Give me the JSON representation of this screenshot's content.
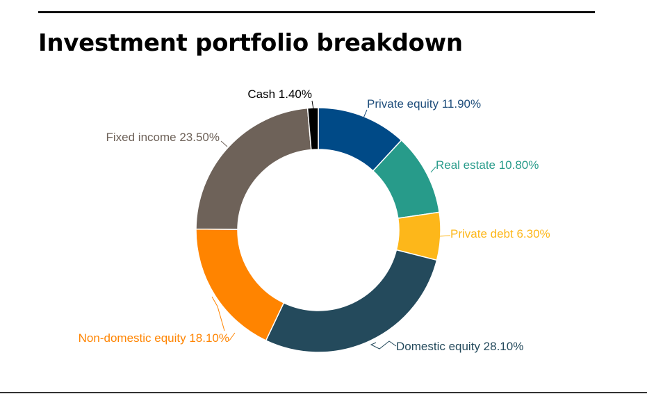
{
  "title": "Investment portfolio breakdown",
  "chart_data": {
    "type": "pie",
    "donut": true,
    "categories": [
      "Private equity",
      "Real estate",
      "Private debt",
      "Domestic equity",
      "Non-domestic equity",
      "Fixed income",
      "Cash"
    ],
    "values": [
      11.9,
      10.8,
      6.3,
      28.1,
      18.1,
      23.5,
      1.4
    ],
    "labels": [
      "Private equity 11.90%",
      "Real estate 10.80%",
      "Private debt 6.30%",
      "Domestic equity 28.10%",
      "Non-domestic equity 18.10%",
      "Fixed income 23.50%",
      "Cash 1.40%"
    ],
    "colors": [
      "#004a87",
      "#279b8a",
      "#fdb71a",
      "#244a5c",
      "#ff8400",
      "#6e6259",
      "#000000"
    ],
    "label_colors": [
      "#1e4d7b",
      "#279b8a",
      "#fdb71a",
      "#244a5c",
      "#ff8400",
      "#6e6259",
      "#000000"
    ],
    "unit": "%",
    "start": "top",
    "direction": "clockwise",
    "legend": "none"
  }
}
